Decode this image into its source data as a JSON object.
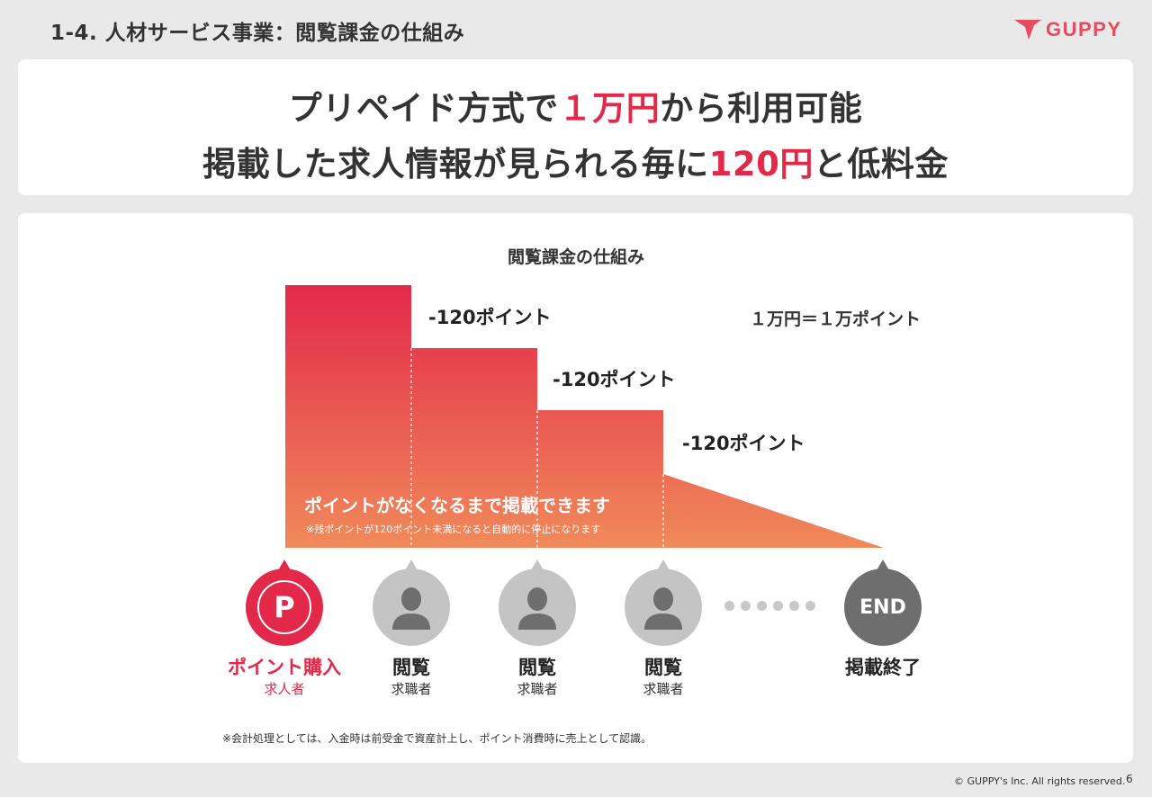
{
  "header": {
    "title": "1-4.  人材サービス事業：閲覧課金の仕組み",
    "logo_text": "GUPPY",
    "logo_color": "#e84a5f"
  },
  "headline": {
    "line1": {
      "pre": "プリペイド方式で",
      "highlight": "１万円",
      "post": "から利用可能"
    },
    "line2": {
      "pre": "掲載した求人情報が見られる毎に",
      "highlight": "120円",
      "post": "と低料金"
    },
    "highlight_color": "#e3294a"
  },
  "diagram": {
    "title": "閲覧課金の仕組み",
    "conversion": "１万円＝１万ポイント",
    "deductions": [
      "-120ポイント",
      "-120ポイント",
      "-120ポイント"
    ],
    "message": "ポイントがなくなるまで掲載できます",
    "note": "※残ポイントが120ポイント未満になると自動的に停止になります",
    "gradient": {
      "top": "#e3294a",
      "bottom": "#f08a5a"
    },
    "nodes": [
      {
        "icon": "p-coin-icon",
        "badge": "P",
        "label": "ポイント購入",
        "sub": "求人者"
      },
      {
        "icon": "person-icon",
        "label": "閲覧",
        "sub": "求職者"
      },
      {
        "icon": "person-icon",
        "label": "閲覧",
        "sub": "求職者"
      },
      {
        "icon": "person-icon",
        "label": "閲覧",
        "sub": "求職者"
      },
      {
        "icon": "end-icon",
        "badge": "END",
        "label": "掲載終了",
        "sub": ""
      }
    ]
  },
  "footnote": "※会計処理としては、入金時は前受金で資産計上し、ポイント消費時に売上として認識。",
  "footer": {
    "copyright": "© GUPPY's Inc. All rights reserved.",
    "page_number": "6"
  }
}
